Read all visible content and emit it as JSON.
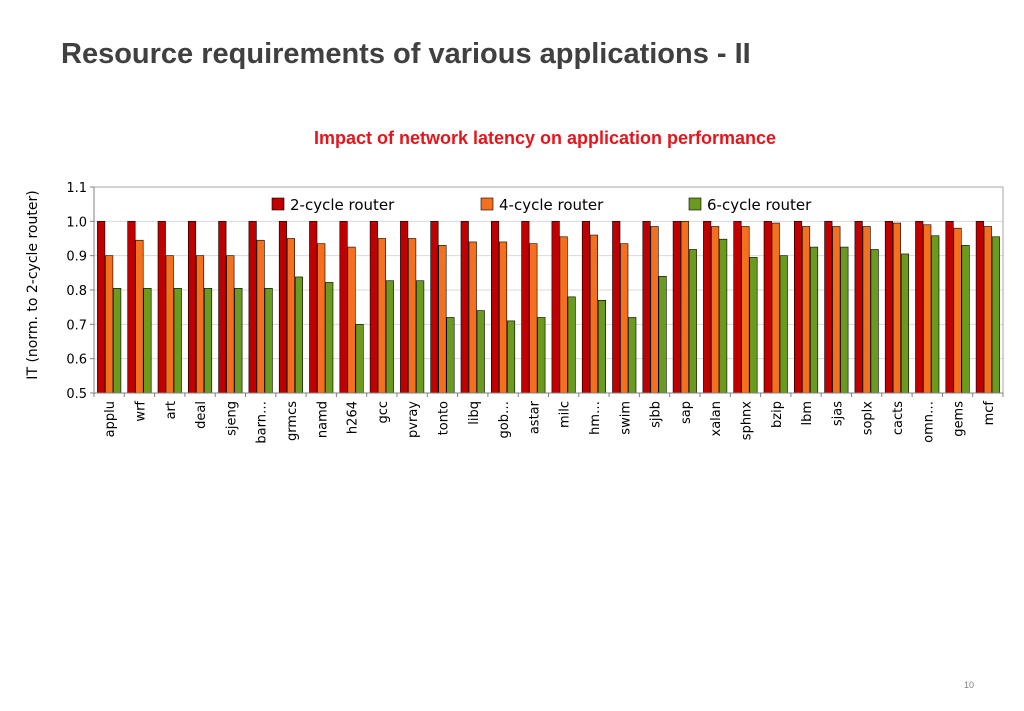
{
  "slide": {
    "title": "Resource requirements of various applications - II",
    "page_number": "10"
  },
  "chart_data": {
    "type": "bar",
    "title": "Impact of network latency on application performance",
    "xlabel": "",
    "ylabel": "IT (norm. to 2-cycle router)",
    "ylim": [
      0.5,
      1.1
    ],
    "yticks": [
      "0.5",
      "0.6",
      "0.7",
      "0.8",
      "0.9",
      "1.0",
      "1.1"
    ],
    "grid": true,
    "legend_position": "top",
    "categories": [
      "applu",
      "wrf",
      "art",
      "deal",
      "sjeng",
      "barn…",
      "grmcs",
      "namd",
      "h264",
      "gcc",
      "pvray",
      "tonto",
      "libq",
      "gob…",
      "astar",
      "milc",
      "hm…",
      "swim",
      "sjbb",
      "sap",
      "xalan",
      "sphnx",
      "bzip",
      "lbm",
      "sjas",
      "soplx",
      "cacts",
      "omn…",
      "gems",
      "mcf"
    ],
    "series": [
      {
        "name": "2-cycle router",
        "color": "#c00000",
        "values": [
          1.0,
          1.0,
          1.0,
          1.0,
          1.0,
          1.0,
          1.0,
          1.0,
          1.0,
          1.0,
          1.0,
          1.0,
          1.0,
          1.0,
          1.0,
          1.0,
          1.0,
          1.0,
          1.0,
          1.0,
          1.0,
          1.0,
          1.0,
          1.0,
          1.0,
          1.0,
          1.0,
          1.0,
          1.0,
          1.0
        ]
      },
      {
        "name": "4-cycle router",
        "color": "#f5701e",
        "values": [
          0.9,
          0.945,
          0.9,
          0.9,
          0.9,
          0.945,
          0.95,
          0.935,
          0.925,
          0.95,
          0.95,
          0.93,
          0.94,
          0.94,
          0.935,
          0.955,
          0.96,
          0.935,
          0.985,
          1.0,
          0.985,
          0.985,
          0.995,
          0.985,
          0.985,
          0.985,
          0.995,
          0.99,
          0.98,
          0.985
        ]
      },
      {
        "name": "6-cycle router",
        "color": "#6a9a1f",
        "values": [
          0.805,
          0.805,
          0.805,
          0.805,
          0.805,
          0.805,
          0.838,
          0.822,
          0.7,
          0.827,
          0.827,
          0.72,
          0.74,
          0.71,
          0.72,
          0.78,
          0.77,
          0.72,
          0.84,
          0.918,
          0.948,
          0.895,
          0.9,
          0.925,
          0.925,
          0.918,
          0.905,
          0.958,
          0.93,
          0.955
        ]
      }
    ]
  }
}
